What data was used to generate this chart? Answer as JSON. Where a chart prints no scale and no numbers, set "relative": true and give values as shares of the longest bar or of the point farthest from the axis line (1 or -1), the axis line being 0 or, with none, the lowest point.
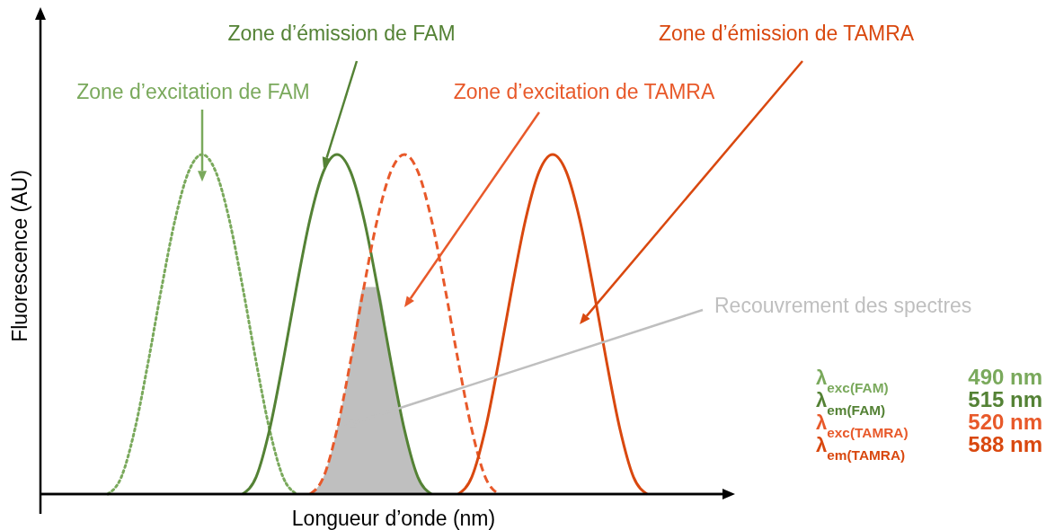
{
  "chart_data": {
    "type": "line",
    "relative": true,
    "xlabel": "Longueur d’onde (nm)",
    "ylabel": "Fluorescence (AU)",
    "categories": [
      null,
      null,
      null,
      null,
      null,
      null,
      null,
      null,
      null,
      null,
      null,
      null,
      null,
      null,
      null,
      null,
      null,
      null,
      null,
      null,
      null,
      null,
      null,
      null,
      null,
      null,
      null,
      null,
      null,
      null,
      null,
      null,
      null,
      null,
      null,
      null,
      null,
      null,
      null,
      null,
      null
    ],
    "series": [
      {
        "name": "Zone d’excitation de FAM",
        "color": "#7aa95c",
        "line_style": "dotted",
        "values": [
          0,
          0.05,
          0.19,
          0.39,
          0.61,
          0.81,
          0.95,
          1,
          0.95,
          0.81,
          0.61,
          0.39,
          0.19,
          0.05,
          0,
          null,
          null,
          null,
          null,
          null,
          null,
          null,
          null,
          null,
          null,
          null,
          null,
          null,
          null,
          null,
          null,
          null,
          null,
          null,
          null,
          null,
          null,
          null,
          null,
          null,
          null
        ]
      },
      {
        "name": "Zone d’émission de FAM",
        "color": "#548235",
        "line_style": "solid",
        "values": [
          null,
          null,
          null,
          null,
          null,
          null,
          null,
          null,
          null,
          null,
          0,
          0.05,
          0.19,
          0.39,
          0.61,
          0.81,
          0.95,
          1,
          0.95,
          0.81,
          0.61,
          0.39,
          0.19,
          0.05,
          0,
          null,
          null,
          null,
          null,
          null,
          null,
          null,
          null,
          null,
          null,
          null,
          null,
          null,
          null,
          null,
          null
        ]
      },
      {
        "name": "Zone d’excitation de TAMRA",
        "color": "#e8592a",
        "line_style": "dashed",
        "values": [
          null,
          null,
          null,
          null,
          null,
          null,
          null,
          null,
          null,
          null,
          null,
          null,
          null,
          null,
          null,
          0,
          0.05,
          0.19,
          0.39,
          0.61,
          0.81,
          0.95,
          1,
          0.95,
          0.81,
          0.61,
          0.39,
          0.19,
          0.05,
          0,
          null,
          null,
          null,
          null,
          null,
          null,
          null,
          null,
          null,
          null,
          null
        ]
      },
      {
        "name": "Zone d’émission de TAMRA",
        "color": "#d9480f",
        "line_style": "solid",
        "values": [
          null,
          null,
          null,
          null,
          null,
          null,
          null,
          null,
          null,
          null,
          null,
          null,
          null,
          null,
          null,
          null,
          null,
          null,
          null,
          null,
          null,
          null,
          null,
          null,
          null,
          null,
          0,
          0.05,
          0.19,
          0.39,
          0.61,
          0.81,
          0.95,
          1,
          0.95,
          0.81,
          0.61,
          0.39,
          0.19,
          0.05,
          0
        ]
      },
      {
        "name": "Recouvrement des spectres",
        "type": "area",
        "color": "#bfbfbf",
        "values": [
          null,
          null,
          null,
          null,
          null,
          null,
          null,
          null,
          null,
          null,
          null,
          null,
          null,
          null,
          null,
          0,
          0.05,
          0.19,
          0.39,
          0.61,
          0.61,
          0.39,
          0.19,
          0.05,
          0,
          null,
          null,
          null,
          null,
          null,
          null,
          null,
          null,
          null,
          null,
          null,
          null,
          null,
          null,
          null,
          null
        ]
      }
    ],
    "annotations": [
      "λ$_{exc(FAM)}$ 490 nm",
      "λ$_{em(FAM)}$ 515 nm",
      "λ$_{exc(TAMRA)}$ 520 nm",
      "λ$_{em(TAMRA)}$ 588 nm"
    ]
  }
}
